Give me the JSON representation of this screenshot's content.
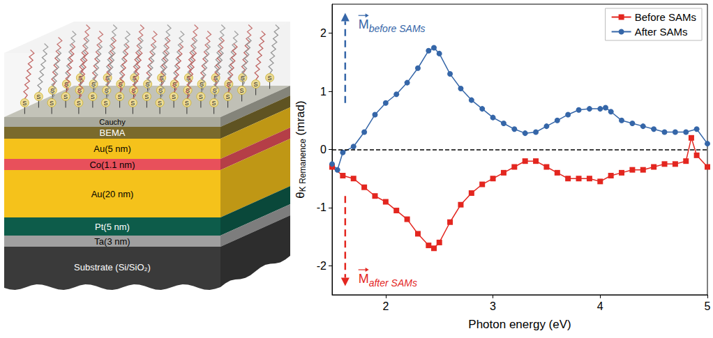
{
  "chart_data": {
    "type": "line",
    "xlabel": "Photon energy (eV)",
    "ylabel": "θK Remanence (mrad)",
    "xlim": [
      1.5,
      5
    ],
    "xticks": [
      2,
      3,
      4,
      5
    ],
    "ylim": [
      -2.5,
      2.5
    ],
    "yticks": [
      -2,
      -1,
      0,
      1,
      2
    ],
    "reference_line": 0,
    "grid": false,
    "legend": "upper right",
    "series": [
      {
        "name": "Before SAMs",
        "color": "#e3261f",
        "marker": "square",
        "line_style": "solid",
        "x": [
          1.5,
          1.6,
          1.7,
          1.8,
          1.9,
          2.0,
          2.1,
          2.2,
          2.3,
          2.4,
          2.45,
          2.5,
          2.6,
          2.7,
          2.8,
          2.9,
          3.0,
          3.1,
          3.2,
          3.3,
          3.4,
          3.5,
          3.6,
          3.7,
          3.8,
          3.9,
          4.0,
          4.1,
          4.2,
          4.3,
          4.4,
          4.5,
          4.6,
          4.7,
          4.8,
          4.85,
          4.9,
          5.0
        ],
        "values": [
          -0.3,
          -0.45,
          -0.5,
          -0.65,
          -0.8,
          -0.9,
          -1.05,
          -1.2,
          -1.45,
          -1.65,
          -1.7,
          -1.6,
          -1.25,
          -0.95,
          -0.75,
          -0.6,
          -0.5,
          -0.4,
          -0.3,
          -0.2,
          -0.2,
          -0.3,
          -0.4,
          -0.5,
          -0.5,
          -0.5,
          -0.55,
          -0.45,
          -0.4,
          -0.35,
          -0.35,
          -0.3,
          -0.25,
          -0.25,
          -0.2,
          0.2,
          -0.1,
          -0.3
        ]
      },
      {
        "name": "After SAMs",
        "color": "#3566a8",
        "marker": "circle",
        "line_style": "solid",
        "x": [
          1.5,
          1.55,
          1.6,
          1.7,
          1.8,
          1.9,
          2.0,
          2.1,
          2.2,
          2.3,
          2.4,
          2.45,
          2.5,
          2.6,
          2.7,
          2.8,
          2.9,
          3.0,
          3.1,
          3.2,
          3.3,
          3.4,
          3.5,
          3.6,
          3.7,
          3.8,
          3.9,
          4.0,
          4.05,
          4.1,
          4.2,
          4.3,
          4.4,
          4.5,
          4.6,
          4.7,
          4.8,
          4.9,
          5.0
        ],
        "values": [
          -0.25,
          -0.35,
          -0.05,
          0.05,
          0.3,
          0.6,
          0.8,
          0.95,
          1.15,
          1.4,
          1.7,
          1.75,
          1.65,
          1.3,
          1.05,
          0.85,
          0.7,
          0.55,
          0.45,
          0.35,
          0.28,
          0.3,
          0.4,
          0.5,
          0.6,
          0.68,
          0.7,
          0.7,
          0.72,
          0.65,
          0.5,
          0.45,
          0.4,
          0.35,
          0.3,
          0.3,
          0.3,
          0.35,
          0.1
        ]
      }
    ],
    "annotations": [
      {
        "text": "M",
        "subscript": "before SAMs",
        "color": "#3566a8",
        "direction": "up"
      },
      {
        "text": "M",
        "subscript": "after SAMs",
        "color": "#e3261f",
        "direction": "down"
      }
    ]
  },
  "diagram": {
    "molecule_label": "S",
    "layers": [
      {
        "label": "Cauchy",
        "color": "#a9a99c"
      },
      {
        "label": "BEMA",
        "color": "#7a6a2c"
      },
      {
        "label": "Au(5 nm)",
        "color": "#f5c21b"
      },
      {
        "label": "Co(1.1 nm)",
        "color": "#e8505b"
      },
      {
        "label": "Au(20 nm)",
        "color": "#f5c21b"
      },
      {
        "label": "Pt(5 nm)",
        "color": "#0d5c4a"
      },
      {
        "label": "Ta(3 nm)",
        "color": "#a0a0a0"
      },
      {
        "label": "Substrate (Si/SiO₂)",
        "color": "#3a3a3a"
      }
    ]
  }
}
